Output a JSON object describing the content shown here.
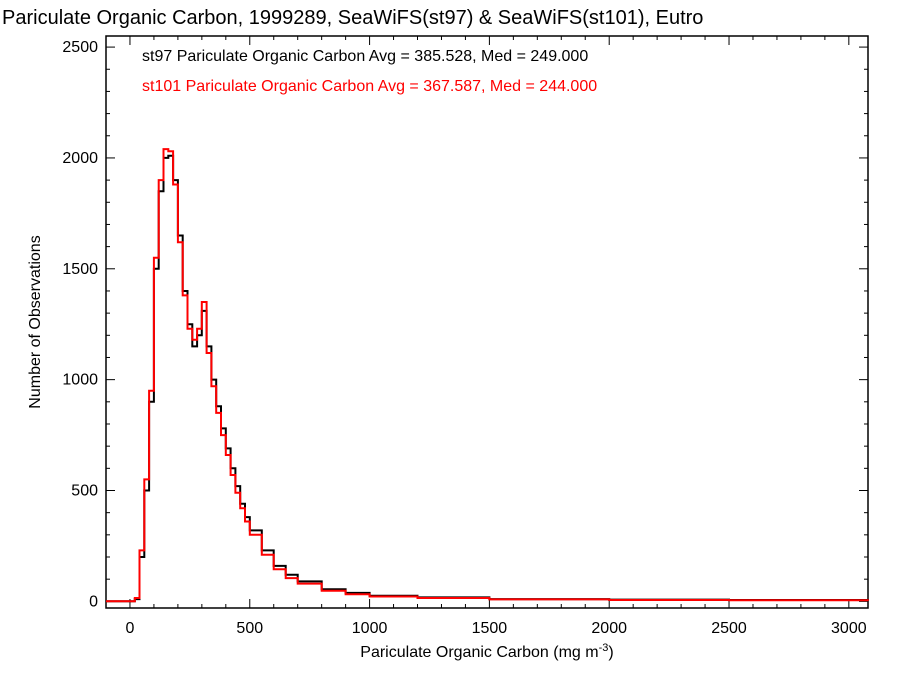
{
  "chart_data": {
    "type": "line",
    "title": "Pariculate Organic Carbon, 1999289, SeaWiFS(st97) & SeaWiFS(st101), Eutro",
    "xlabel": "Pariculate Organic Carbon (mg m",
    "xlabel_sup": "-3",
    "xlabel_end": ")",
    "ylabel": "Number of Observations",
    "xlim": [
      -100,
      3080
    ],
    "ylim": [
      -30,
      2550
    ],
    "x_ticks": [
      0,
      500,
      1000,
      1500,
      2000,
      2500,
      3000
    ],
    "y_ticks": [
      0,
      500,
      1000,
      1500,
      2000,
      2500
    ],
    "grid": false,
    "stats": [
      {
        "text": "st97 Pariculate Organic Carbon Avg = 385.528, Med = 249.000",
        "color": "#000000"
      },
      {
        "text": "st101 Pariculate Organic Carbon Avg = 367.587, Med = 244.000",
        "color": "#ff0000"
      }
    ],
    "series": [
      {
        "id": "st97",
        "color": "#000000",
        "x": [
          -100,
          20,
          40,
          60,
          80,
          100,
          120,
          140,
          160,
          180,
          200,
          220,
          240,
          260,
          280,
          300,
          320,
          340,
          360,
          380,
          400,
          420,
          440,
          460,
          480,
          500,
          550,
          600,
          650,
          700,
          800,
          900,
          1000,
          1200,
          1500,
          2000,
          2500,
          3080
        ],
        "y": [
          0,
          10,
          200,
          500,
          900,
          1500,
          1850,
          2000,
          2010,
          1900,
          1650,
          1400,
          1250,
          1150,
          1200,
          1310,
          1150,
          1000,
          880,
          780,
          690,
          600,
          520,
          440,
          380,
          320,
          230,
          160,
          120,
          90,
          55,
          38,
          25,
          18,
          10,
          8,
          6,
          4
        ]
      },
      {
        "id": "st101",
        "color": "#ff0000",
        "x": [
          -100,
          20,
          40,
          60,
          80,
          100,
          120,
          140,
          160,
          180,
          200,
          220,
          240,
          260,
          280,
          300,
          320,
          340,
          360,
          380,
          400,
          420,
          440,
          460,
          480,
          500,
          550,
          600,
          650,
          700,
          800,
          900,
          1000,
          1200,
          1500,
          2000,
          2500,
          3080
        ],
        "y": [
          0,
          15,
          230,
          550,
          950,
          1550,
          1900,
          2040,
          2030,
          1880,
          1620,
          1380,
          1230,
          1180,
          1230,
          1350,
          1120,
          970,
          850,
          750,
          660,
          570,
          490,
          420,
          360,
          300,
          210,
          145,
          105,
          80,
          48,
          32,
          22,
          15,
          9,
          6,
          5,
          3
        ]
      }
    ]
  }
}
